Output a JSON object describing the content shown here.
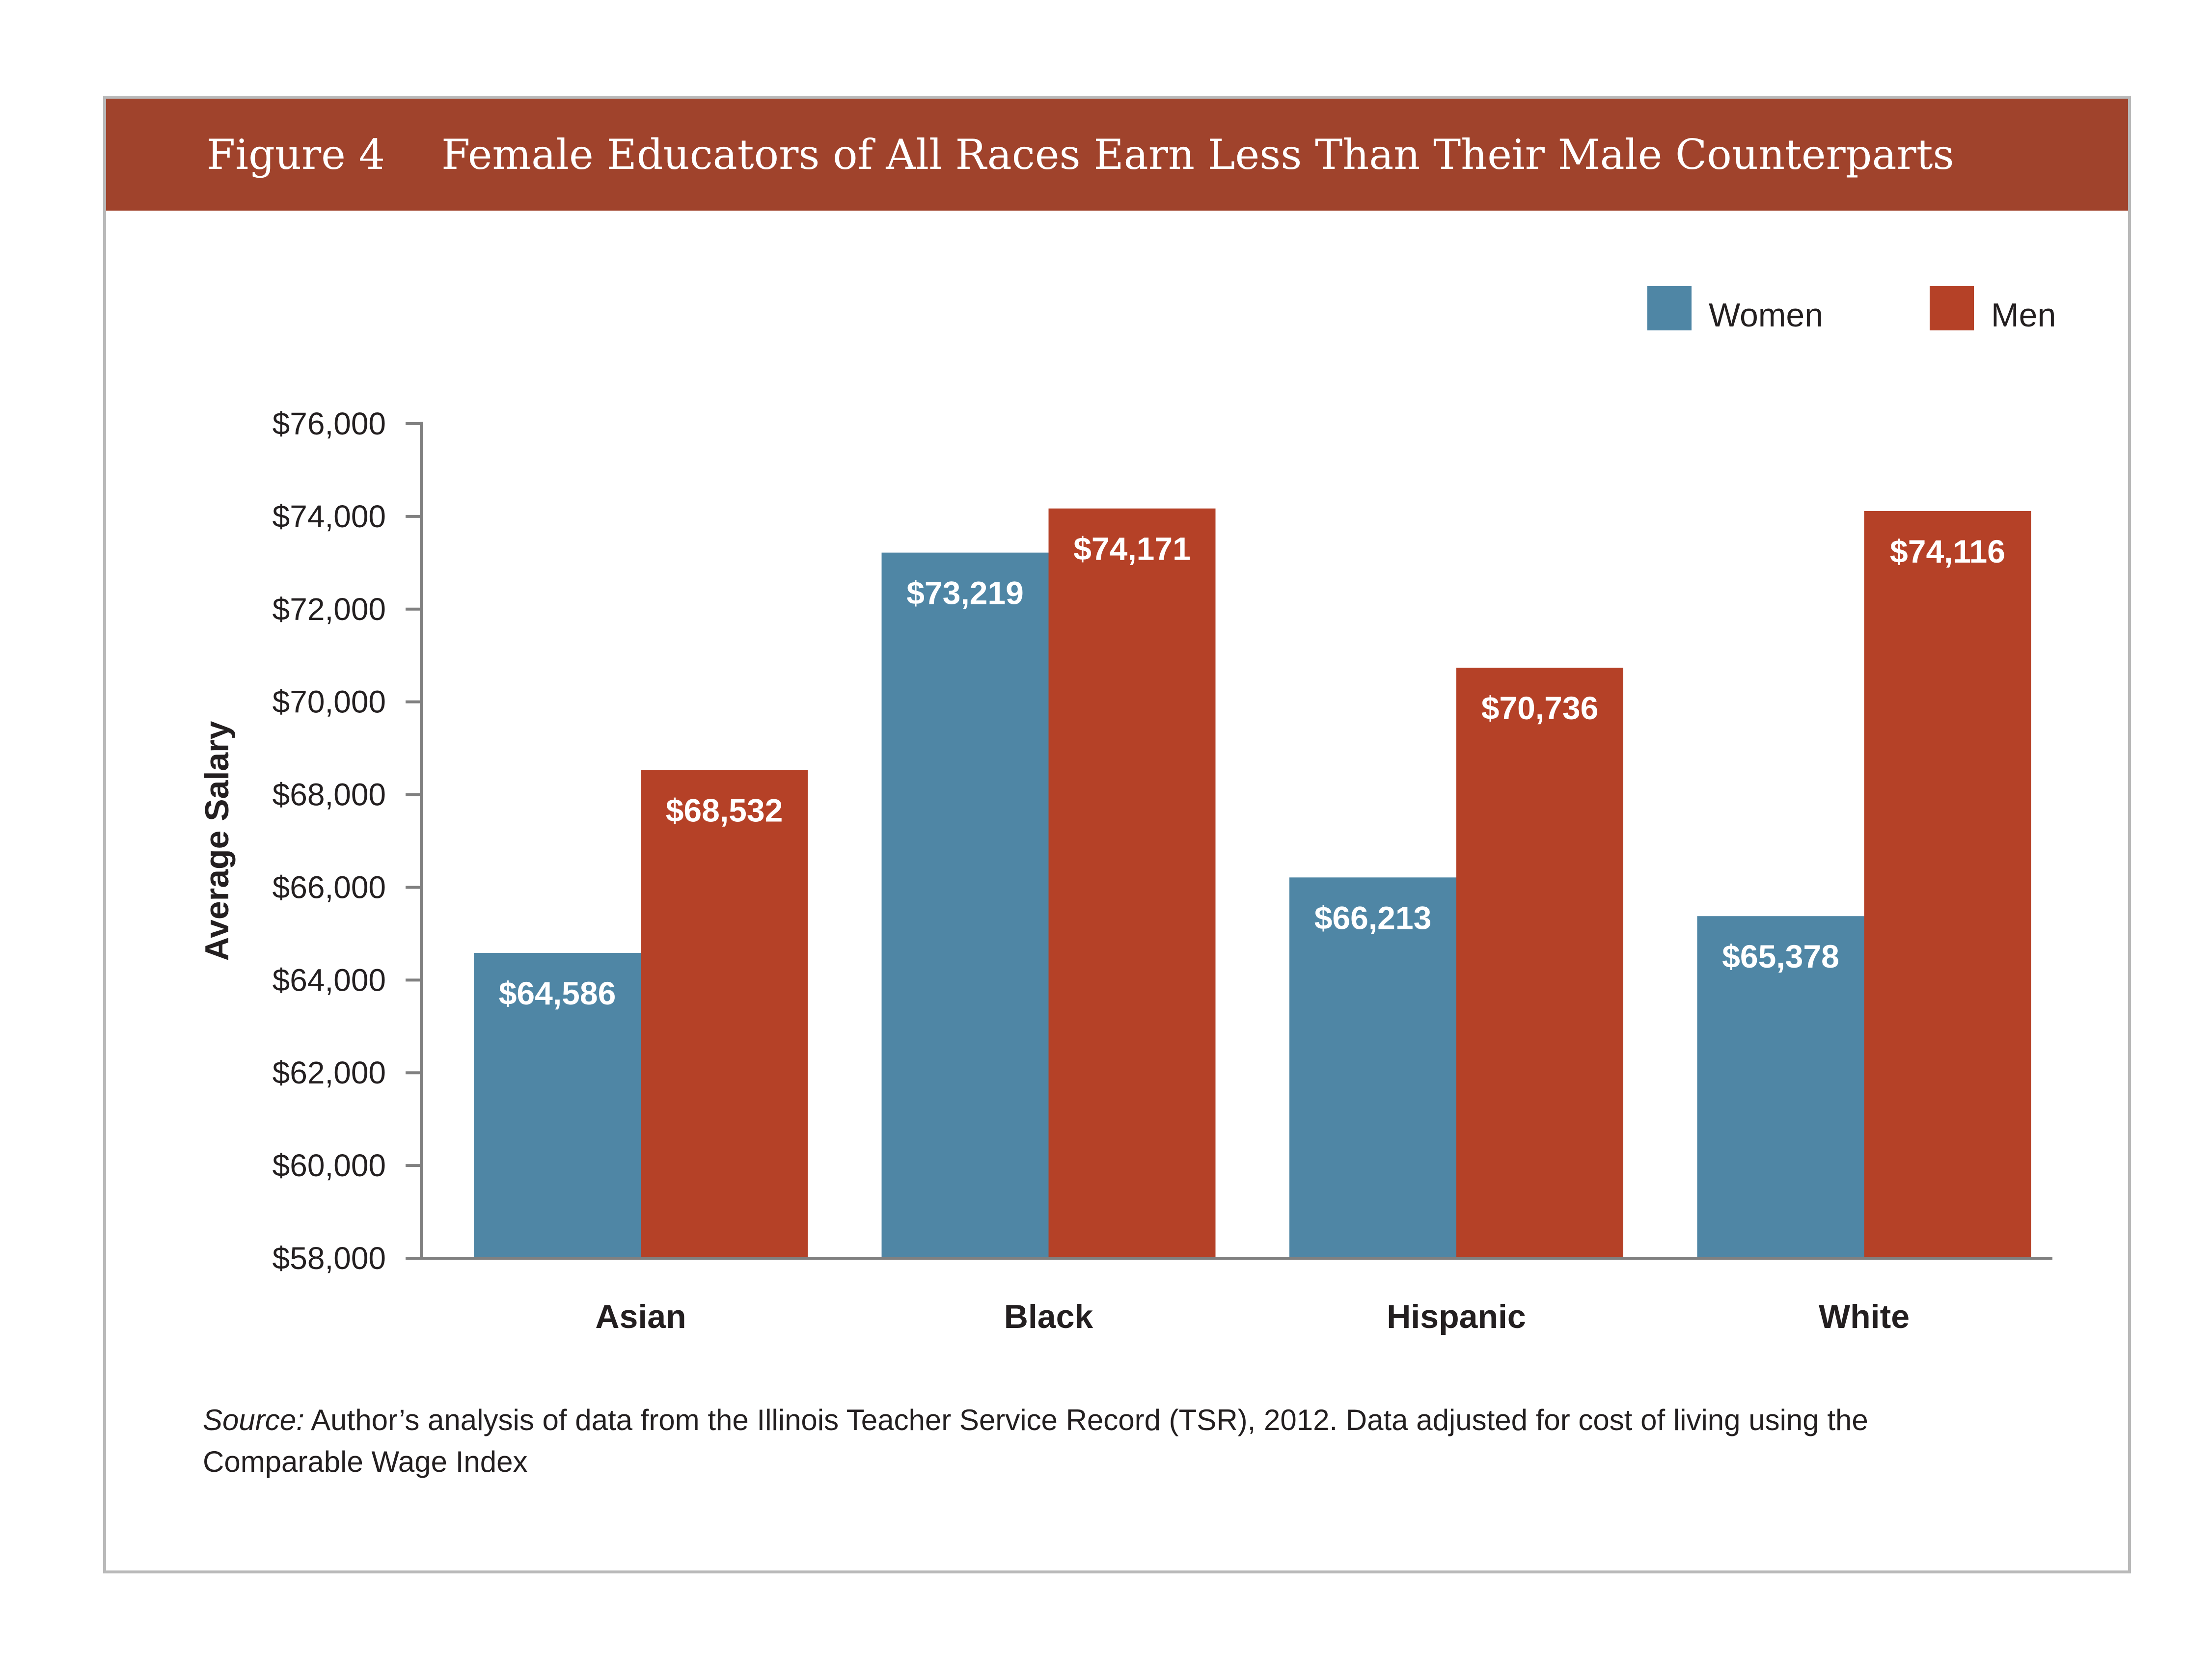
{
  "header": {
    "figure_label": "Figure 4",
    "title": "Female Educators of All Races Earn Less Than Their Male Counterparts",
    "background_color": "#a0432c"
  },
  "chart_data": {
    "type": "bar",
    "title": "Female Educators of All Races Earn Less Than Their Male Counterparts",
    "xlabel": "",
    "ylabel": "Average Salary",
    "categories": [
      "Asian",
      "Black",
      "Hispanic",
      "White"
    ],
    "series": [
      {
        "name": "Women",
        "color": "#4f86a5",
        "values": [
          64586,
          73219,
          66213,
          65378
        ],
        "labels": [
          "$64,586",
          "$73,219",
          "$66,213",
          "$65,378"
        ]
      },
      {
        "name": "Men",
        "color": "#b54127",
        "values": [
          68532,
          74171,
          70736,
          74116
        ],
        "labels": [
          "$68,532",
          "$74,171",
          "$70,736",
          "$74,116"
        ]
      }
    ],
    "ylim": [
      58000,
      76000
    ],
    "yticks": [
      58000,
      60000,
      62000,
      64000,
      66000,
      68000,
      70000,
      72000,
      74000,
      76000
    ],
    "ytick_labels": [
      "$58,000",
      "$60,000",
      "$62,000",
      "$64,000",
      "$66,000",
      "$68,000",
      "$70,000",
      "$72,000",
      "$74,000",
      "$76,000"
    ],
    "legend_position": "top-right",
    "grid": false
  },
  "source": {
    "label": "Source:",
    "text": " Author’s analysis of data from the Illinois Teacher Service Record (TSR), 2012. Data adjusted for cost of living using the Comparable Wage Index"
  }
}
